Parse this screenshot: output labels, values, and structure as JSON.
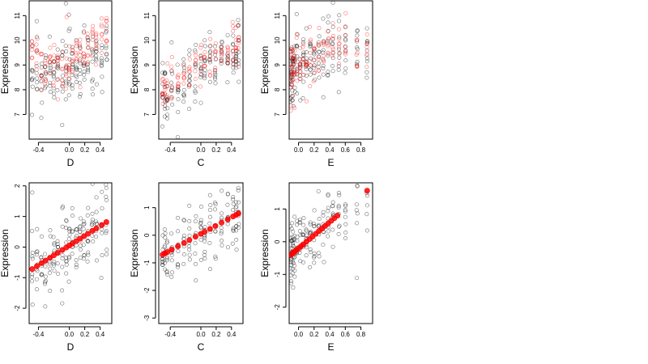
{
  "colors": {
    "observed": "#000000",
    "fitted": "#ff0000"
  },
  "chart_data": [
    {
      "type": "scatter",
      "xlabel": "D",
      "ylabel": "Expression",
      "xlim": [
        -0.52,
        0.55
      ],
      "ylim": [
        6.0,
        11.6
      ],
      "xticks": [
        -0.4,
        0.0,
        0.2,
        0.4
      ],
      "xtick_labels": [
        "-0.4",
        "0.0",
        "0.2",
        "0.4"
      ],
      "yticks": [
        7,
        8,
        9,
        10,
        11
      ],
      "ytick_labels": [
        "7",
        "8",
        "9",
        "10",
        "11"
      ],
      "x_levels": [
        -0.48,
        -0.42,
        -0.36,
        -0.31,
        -0.25,
        -0.2,
        -0.15,
        -0.09,
        -0.04,
        0.0,
        0.04,
        0.09,
        0.14,
        0.19,
        0.24,
        0.3,
        0.35,
        0.42,
        0.48
      ],
      "series": [
        {
          "x": [
            -0.5,
            -0.45,
            -0.4,
            -0.3,
            -0.2,
            -0.1,
            0.0,
            0.1,
            0.2,
            0.3,
            0.4,
            0.5
          ],
          "center": [
            8.7,
            8.8,
            8.6,
            8.7,
            8.6,
            8.6,
            8.9,
            8.8,
            9.0,
            9.1,
            9.3,
            9.5
          ],
          "spread": 0.75
        },
        {
          "x": [
            -0.5,
            -0.45,
            -0.4,
            -0.3,
            -0.2,
            -0.1,
            0.0,
            0.1,
            0.2,
            0.3,
            0.4,
            0.5
          ],
          "center": [
            9.6,
            9.5,
            9.2,
            9.0,
            8.9,
            8.9,
            9.0,
            9.3,
            9.5,
            9.8,
            10.2,
            10.4
          ],
          "spread": 0.55
        }
      ]
    },
    {
      "type": "scatter",
      "xlabel": "C",
      "ylabel": "Expression",
      "xlim": [
        -0.55,
        0.55
      ],
      "ylim": [
        6.0,
        11.6
      ],
      "xticks": [
        -0.4,
        0.0,
        0.2,
        0.4
      ],
      "xtick_labels": [
        "-0.4",
        "0.0",
        "0.2",
        "0.4"
      ],
      "yticks": [
        7,
        8,
        9,
        10,
        11
      ],
      "ytick_labels": [
        "7",
        "8",
        "9",
        "10",
        "11"
      ],
      "x_levels": [
        -0.5,
        -0.47,
        -0.44,
        -0.38,
        -0.3,
        -0.22,
        -0.15,
        -0.07,
        0.0,
        0.05,
        0.12,
        0.19,
        0.27,
        0.35,
        0.42,
        0.46,
        0.49
      ],
      "series": [
        {
          "x": [
            -0.5,
            -0.3,
            -0.1,
            0.0,
            0.1,
            0.2,
            0.3,
            0.4,
            0.5
          ],
          "center": [
            7.9,
            8.2,
            8.6,
            8.9,
            9.1,
            9.1,
            9.2,
            9.4,
            9.5
          ],
          "spread": 0.7
        },
        {
          "x": [
            -0.5,
            -0.3,
            -0.1,
            0.0,
            0.1,
            0.2,
            0.3,
            0.4,
            0.5
          ],
          "center": [
            8.0,
            8.4,
            8.8,
            9.1,
            9.2,
            9.4,
            9.6,
            9.8,
            10.0
          ],
          "spread": 0.5
        }
      ]
    },
    {
      "type": "scatter",
      "xlabel": "E",
      "ylabel": "Expression",
      "xlim": [
        -0.12,
        0.95
      ],
      "ylim": [
        6.0,
        11.6
      ],
      "xticks": [
        0.0,
        0.2,
        0.4,
        0.6,
        0.8
      ],
      "xtick_labels": [
        "0.0",
        "0.2",
        "0.4",
        "0.6",
        "0.8"
      ],
      "yticks": [
        7,
        8,
        9,
        10,
        11
      ],
      "ytick_labels": [
        "7",
        "8",
        "9",
        "10",
        "11"
      ],
      "x_levels": [
        -0.1,
        -0.09,
        -0.08,
        -0.07,
        -0.05,
        -0.02,
        0.02,
        0.06,
        0.1,
        0.15,
        0.2,
        0.26,
        0.32,
        0.38,
        0.44,
        0.52,
        0.6,
        0.75,
        0.88
      ],
      "series": [
        {
          "x": [
            -0.1,
            0.0,
            0.2,
            0.4,
            0.6,
            0.9
          ],
          "center": [
            8.6,
            8.9,
            9.3,
            9.6,
            9.8,
            9.5
          ],
          "spread": 0.8
        },
        {
          "x": [
            -0.1,
            0.0,
            0.2,
            0.4,
            0.6,
            0.9
          ],
          "center": [
            8.8,
            9.0,
            9.3,
            9.6,
            9.8,
            9.9
          ],
          "spread": 0.6
        }
      ]
    },
    {
      "type": "scatter",
      "xlabel": "D",
      "ylabel": "Expression",
      "xlim": [
        -0.52,
        0.55
      ],
      "ylim": [
        -2.5,
        2.1
      ],
      "xticks": [
        -0.4,
        0.0,
        0.2,
        0.4
      ],
      "xtick_labels": [
        "-0.4",
        "0.0",
        "0.2",
        "0.4"
      ],
      "yticks": [
        -2,
        -1,
        0,
        1,
        2
      ],
      "ytick_labels": [
        "-2",
        "-1",
        "0",
        "1",
        "2"
      ],
      "x_levels": [
        -0.48,
        -0.42,
        -0.36,
        -0.31,
        -0.25,
        -0.2,
        -0.15,
        -0.09,
        -0.04,
        0.0,
        0.04,
        0.09,
        0.14,
        0.19,
        0.24,
        0.3,
        0.35,
        0.42,
        0.48
      ],
      "series": [
        {
          "x": [
            -0.5,
            0.5
          ],
          "center": [
            -0.75,
            0.85
          ],
          "spread": 0.65
        }
      ],
      "fitted": {
        "x": [
          -0.48,
          -0.42,
          -0.36,
          -0.31,
          -0.25,
          -0.2,
          -0.15,
          -0.09,
          -0.04,
          0.0,
          0.04,
          0.09,
          0.14,
          0.19,
          0.24,
          0.3,
          0.35,
          0.42,
          0.48
        ],
        "intercept": 0.05,
        "slope": 1.6
      }
    },
    {
      "type": "scatter",
      "xlabel": "C",
      "ylabel": "Expression",
      "xlim": [
        -0.55,
        0.55
      ],
      "ylim": [
        -3.2,
        1.9
      ],
      "xticks": [
        -0.4,
        0.0,
        0.2,
        0.4
      ],
      "xtick_labels": [
        "-0.4",
        "0.0",
        "0.2",
        "0.4"
      ],
      "yticks": [
        -3,
        -2,
        -1,
        0,
        1
      ],
      "ytick_labels": [
        "-3",
        "-2",
        "-1",
        "0",
        "1"
      ],
      "x_levels": [
        -0.5,
        -0.47,
        -0.44,
        -0.38,
        -0.3,
        -0.22,
        -0.15,
        -0.07,
        0.0,
        0.05,
        0.12,
        0.19,
        0.27,
        0.35,
        0.42,
        0.46,
        0.49
      ],
      "series": [
        {
          "x": [
            -0.5,
            0.5
          ],
          "center": [
            -0.8,
            0.9
          ],
          "spread": 0.6
        }
      ],
      "fitted": {
        "x": [
          -0.5,
          -0.47,
          -0.44,
          -0.38,
          -0.3,
          -0.22,
          -0.15,
          -0.07,
          0.0,
          0.05,
          0.12,
          0.19,
          0.27,
          0.35,
          0.42,
          0.46,
          0.49
        ],
        "intercept": 0.05,
        "slope": 1.5
      }
    },
    {
      "type": "scatter",
      "xlabel": "E",
      "ylabel": "Expression",
      "xlim": [
        -0.12,
        0.95
      ],
      "ylim": [
        -2.5,
        1.8
      ],
      "xticks": [
        0.0,
        0.2,
        0.4,
        0.6,
        0.8
      ],
      "xtick_labels": [
        "0.0",
        "0.2",
        "0.4",
        "0.6",
        "0.8"
      ],
      "yticks": [
        -2,
        -1,
        0,
        1
      ],
      "ytick_labels": [
        "-2",
        "-1",
        "0",
        "1"
      ],
      "x_levels": [
        -0.1,
        -0.09,
        -0.08,
        -0.07,
        -0.05,
        -0.02,
        0.02,
        0.06,
        0.1,
        0.15,
        0.2,
        0.26,
        0.32,
        0.38,
        0.44,
        0.52,
        0.6,
        0.75,
        0.88
      ],
      "series": [
        {
          "x": [
            -0.1,
            0.0,
            0.5,
            0.9
          ],
          "center": [
            -0.4,
            0.0,
            0.9,
            1.5
          ],
          "spread": 0.6
        }
      ],
      "fitted": {
        "x": [
          -0.1,
          -0.09,
          -0.08,
          -0.07,
          -0.06,
          -0.05,
          -0.03,
          0.0,
          0.03,
          0.06,
          0.1,
          0.14,
          0.18,
          0.22,
          0.26,
          0.3,
          0.34,
          0.38,
          0.42,
          0.46,
          0.5,
          0.88
        ],
        "intercept": -0.2,
        "slope": 2.0
      }
    }
  ]
}
